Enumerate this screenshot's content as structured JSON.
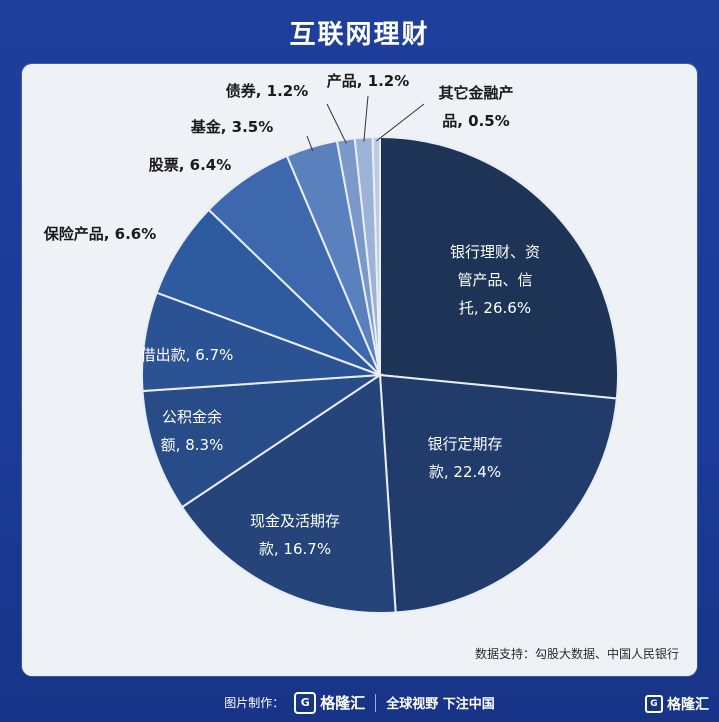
{
  "title": "互联网理财",
  "source": "数据支持：勾股大数据、中国人民银行",
  "footer": {
    "made_by_label": "图片制作：",
    "logo_text": "格隆汇",
    "slogan": "全球视野 下注中国"
  },
  "corner_logo": "格隆汇",
  "chart_data": {
    "type": "pie",
    "title": "",
    "unit": "%",
    "slices": [
      {
        "label": "银行理财、资管产品、信托",
        "value": 26.6,
        "display": "银行理财、资|管产品、信|托, 26.6%",
        "color": "#1d3457"
      },
      {
        "label": "银行定期存款",
        "value": 22.4,
        "display": "银行定期存|款, 22.4%",
        "color": "#213c6a"
      },
      {
        "label": "现金及活期存款",
        "value": 16.7,
        "display": "现金及活期存|款, 16.7%",
        "color": "#24447a"
      },
      {
        "label": "公积金余额",
        "value": 8.3,
        "display": "公积金余|额, 8.3%",
        "color": "#284c88"
      },
      {
        "label": "借出款",
        "value": 6.7,
        "display": "借出款, 6.7%",
        "color": "#2b5293"
      },
      {
        "label": "保险产品",
        "value": 6.6,
        "display": "保险产品, 6.6%",
        "color": "#2e5a9f"
      },
      {
        "label": "股票",
        "value": 6.4,
        "display": "股票, 6.4%",
        "color": "#3e68ad"
      },
      {
        "label": "基金",
        "value": 3.5,
        "display": "基金, 3.5%",
        "color": "#5a80bd"
      },
      {
        "label": "债券",
        "value": 1.2,
        "display": "债券, 1.2%",
        "color": "#7a98c9"
      },
      {
        "label": "产品",
        "value": 1.2,
        "display": "产品, 1.2%",
        "color": "#9cb2d6"
      },
      {
        "label": "其它金融产品",
        "value": 0.5,
        "display": "其它金融产|品, 0.5%",
        "color": "#bccbe3"
      }
    ]
  }
}
